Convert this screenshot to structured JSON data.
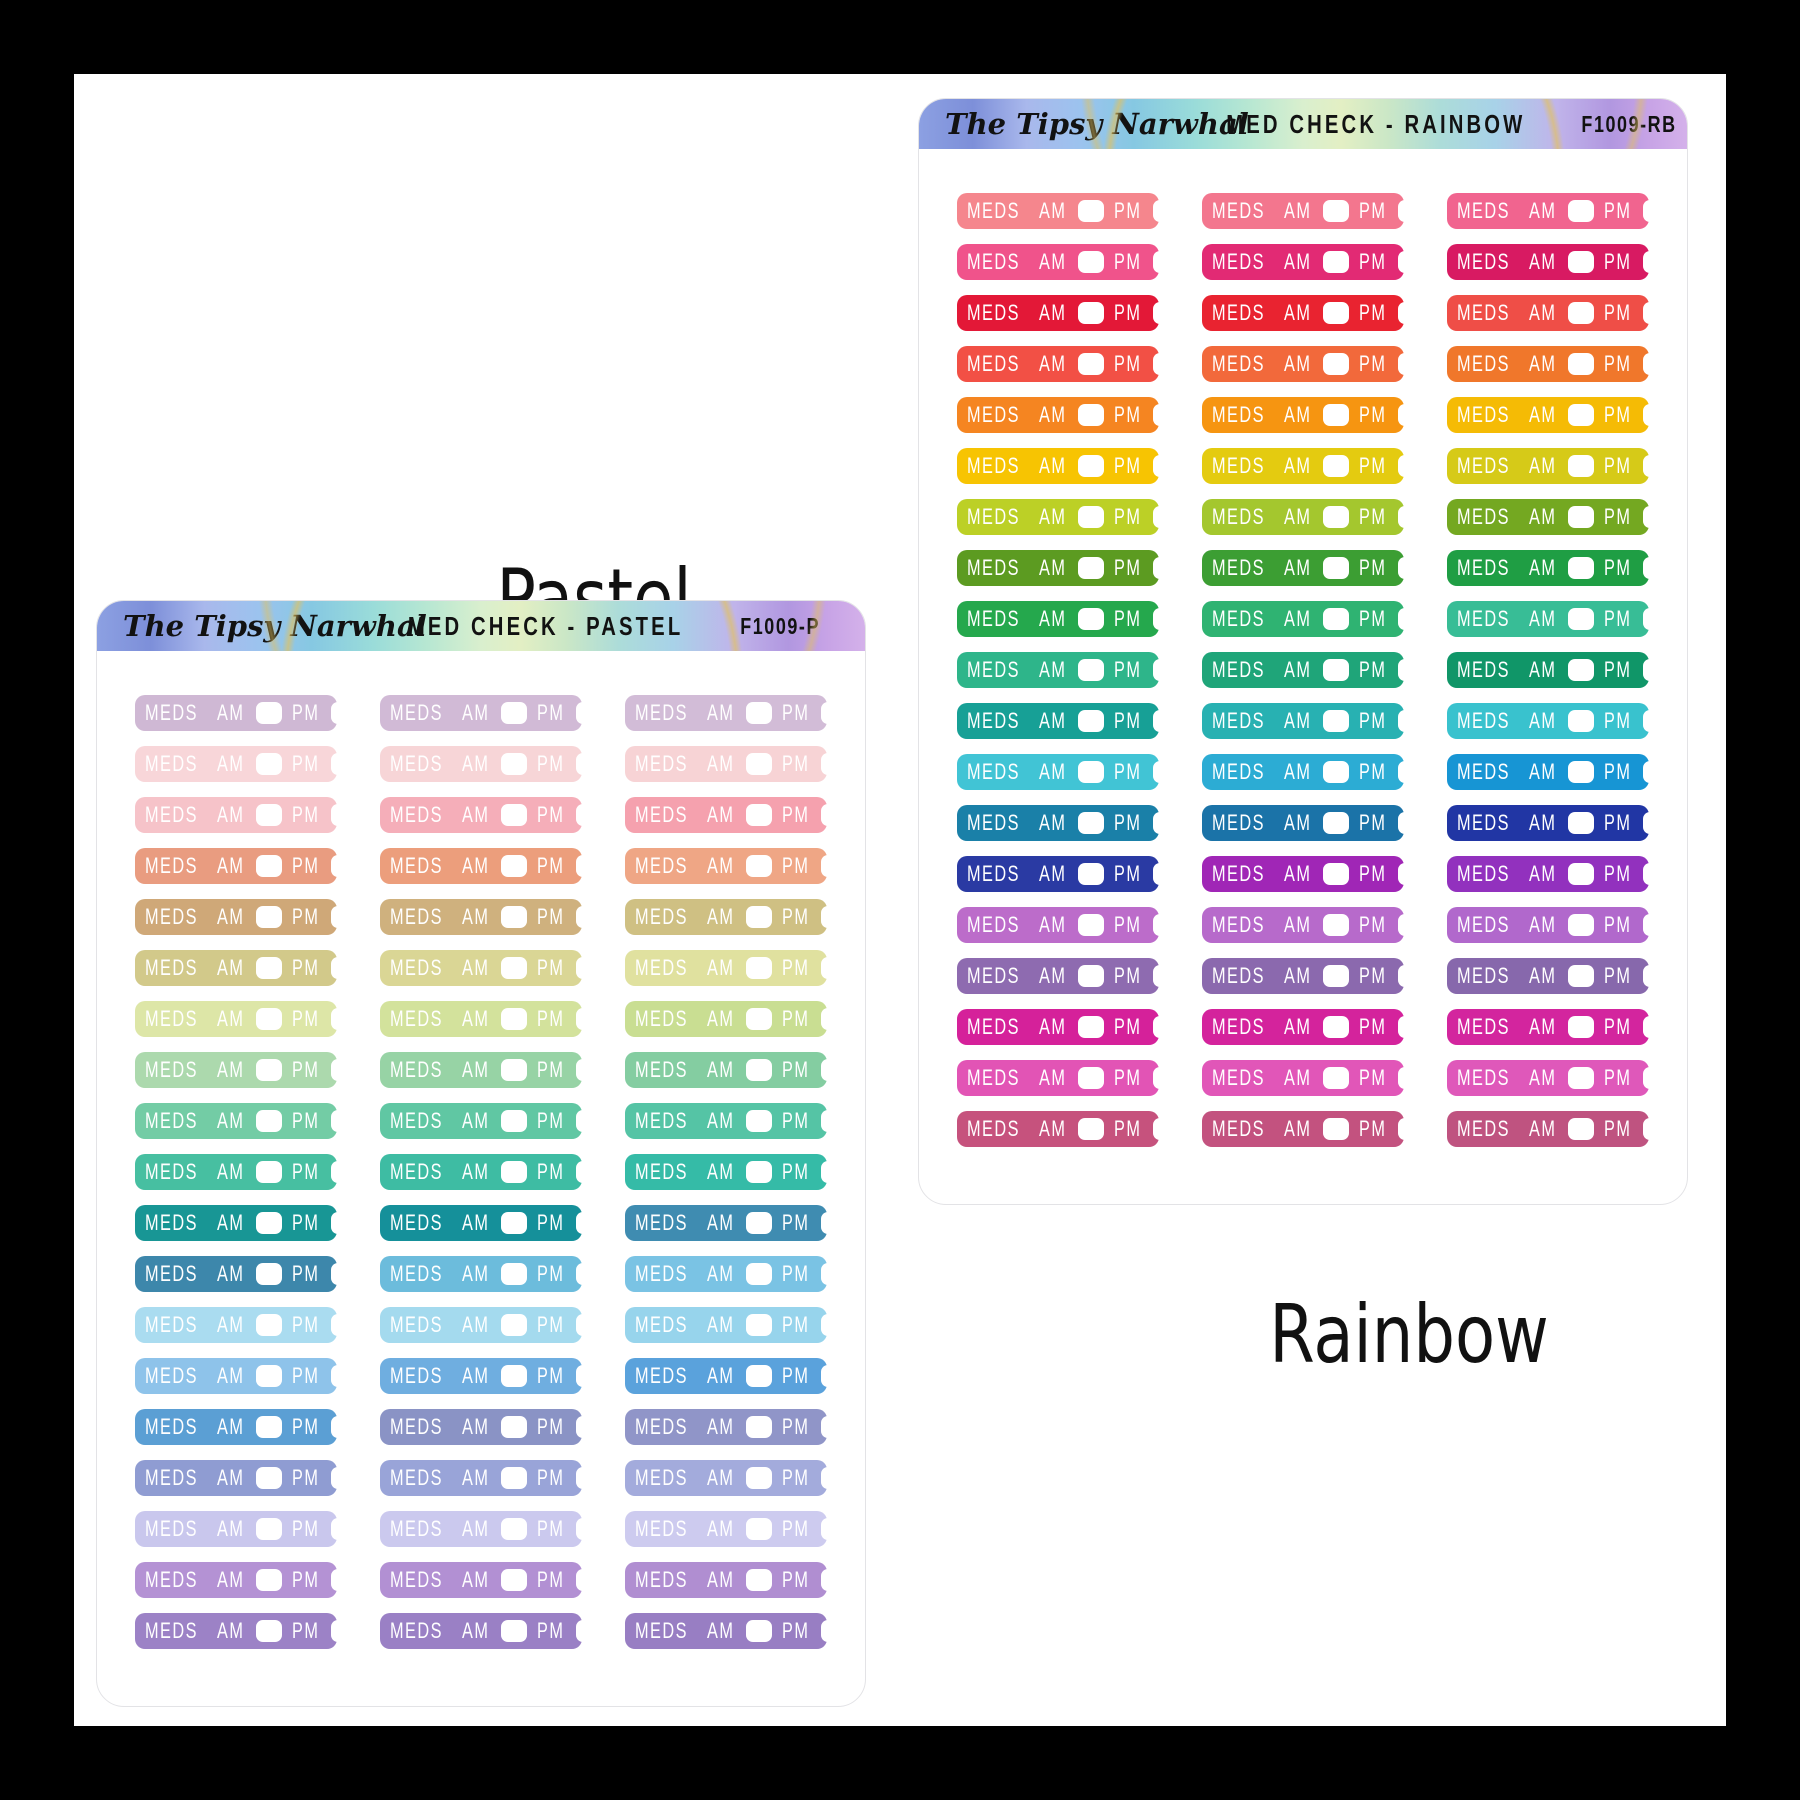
{
  "canvas": {
    "background": "#000000",
    "panel": "#FFFFFF"
  },
  "sticker_text": {
    "label": "MEDS",
    "am": "AM",
    "pm": "PM"
  },
  "icons": {
    "am_checkbox": "blank-rounded-checkbox-white",
    "pm_checkbox": "blank-rounded-checkbox-white"
  },
  "theme": {
    "header_gradient": [
      "#8CA0E2 0%",
      "#7D8FD9 7%",
      "#A9B8EC 14%",
      "#9CC3EE 21%",
      "#86C8E2 28%",
      "#9ADCD9 36%",
      "#B7E7D2 43%",
      "#D9EFCE 50%",
      "#E3EFC4 55%",
      "#CBE7C6 61%",
      "#ACDCD9 68%",
      "#A8D2E8 75%",
      "#C0B4EA 83%",
      "#B197E0 90%",
      "#C7A3E6 95%",
      "#D4B1EA 100%"
    ],
    "sheet_border": "#E3E3E6",
    "caption_color": "#111111",
    "header_text_color": "#121212",
    "sticker_text_color": "#FFFFFF"
  },
  "sheets": [
    {
      "id": "pastel",
      "caption": "Pastel",
      "header": {
        "logo": "The Tipsy Narwhal",
        "title": "MED CHECK - PASTEL",
        "code": "F1009-P"
      },
      "rows": [
        [
          "#CFB8D4",
          "#D1BAD6",
          "#D2BCD7"
        ],
        [
          "#F8D6D9",
          "#F7D5D7",
          "#F7D3D5"
        ],
        [
          "#F6C3C9",
          "#F5AEB9",
          "#F5A1AE"
        ],
        [
          "#E99C80",
          "#EC9E7C",
          "#EFA685"
        ],
        [
          "#CFA878",
          "#CFB17E",
          "#CFC083"
        ],
        [
          "#D2C98A",
          "#DAD695",
          "#E0E19F"
        ],
        [
          "#DDE6A7",
          "#D3E29C",
          "#C9DE92"
        ],
        [
          "#ACD9AD",
          "#97D3A5",
          "#84CDA1"
        ],
        [
          "#73CCA5",
          "#60C7A3",
          "#55C4A5"
        ],
        [
          "#47BFA1",
          "#3EBCA3",
          "#35BBA7"
        ],
        [
          "#189695",
          "#15909A",
          "#3F8CB1"
        ],
        [
          "#3D87AB",
          "#6CBCDC",
          "#7AC3E4"
        ],
        [
          "#AADCF0",
          "#A4DAEE",
          "#97D4EC"
        ],
        [
          "#8EC3EA",
          "#6FAEE0",
          "#5AA2DC"
        ],
        [
          "#5B9FD4",
          "#8A93C5",
          "#9095C8"
        ],
        [
          "#8F9CD2",
          "#99A4D8",
          "#A3ABDC"
        ],
        [
          "#C9C7ED",
          "#CBC9EE",
          "#CDCBEF"
        ],
        [
          "#B492D4",
          "#B290D3",
          "#B08ED1"
        ],
        [
          "#9C82C6",
          "#9A80C5",
          "#987EC3"
        ]
      ]
    },
    {
      "id": "rainbow",
      "caption": "Rainbow",
      "header": {
        "logo": "The Tipsy Narwhal",
        "title": "MED CHECK - RAINBOW",
        "code": "F1009-RB"
      },
      "rows": [
        [
          "#F5868D",
          "#F3768E",
          "#F1648F"
        ],
        [
          "#F0538B",
          "#E22A74",
          "#D81A62"
        ],
        [
          "#E31837",
          "#E92330",
          "#EF4E47"
        ],
        [
          "#F25045",
          "#F2693B",
          "#F0772B"
        ],
        [
          "#F58521",
          "#F69511",
          "#F5BB05"
        ],
        [
          "#F7C402",
          "#E4CB10",
          "#D6CA18"
        ],
        [
          "#BCD026",
          "#A4C72E",
          "#74A821"
        ],
        [
          "#5C9B21",
          "#3C9E33",
          "#1F9E44"
        ],
        [
          "#25A84D",
          "#2FB372",
          "#38BD96"
        ],
        [
          "#2EB58A",
          "#1FA579",
          "#109668"
        ],
        [
          "#17A096",
          "#28B1B2",
          "#39C2CE"
        ],
        [
          "#41C4D5",
          "#2CACD4",
          "#1795D4"
        ],
        [
          "#1A80A8",
          "#1B73A8",
          "#2136A4"
        ],
        [
          "#2A3AA3",
          "#A026B6",
          "#9231BE"
        ],
        [
          "#BC6CCA",
          "#B76ACB",
          "#B168CC"
        ],
        [
          "#8E6BB0",
          "#8B69AE",
          "#8768AC"
        ],
        [
          "#D5219A",
          "#D4239C",
          "#D3259E"
        ],
        [
          "#E254B5",
          "#E156B8",
          "#DF58BA"
        ],
        [
          "#C6527D",
          "#C3527F",
          "#BF5380"
        ]
      ]
    }
  ]
}
